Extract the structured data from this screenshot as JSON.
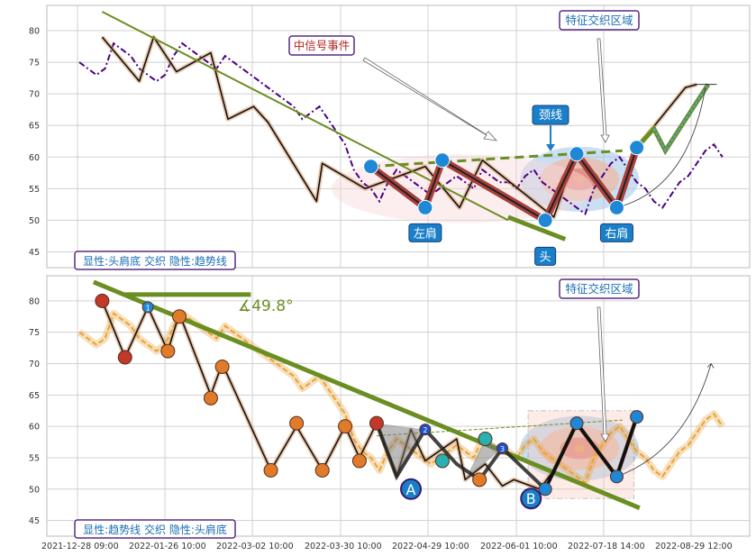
{
  "chart_data": [
    {
      "type": "line",
      "panel": "top",
      "ylim": [
        42.5,
        84
      ],
      "yticks": [
        45,
        50,
        55,
        60,
        65,
        70,
        75,
        80
      ],
      "grid": true,
      "series": [
        {
          "color": "#4b0082",
          "style": "dash-dot",
          "x": [
            0,
            3,
            6,
            9,
            12,
            15,
            18,
            21,
            24,
            27,
            30,
            33,
            36,
            39,
            42,
            45,
            48,
            51,
            54,
            57,
            60,
            63,
            66,
            69,
            72,
            75,
            78,
            81,
            84,
            87,
            90,
            93,
            96,
            99,
            102,
            105,
            108,
            111,
            114,
            117,
            120,
            123,
            126,
            129,
            132,
            135,
            138,
            141,
            144,
            147,
            150,
            153,
            156,
            159,
            162,
            165,
            168,
            171,
            174,
            177,
            180,
            183,
            186,
            189,
            192,
            195,
            198,
            201,
            204,
            207,
            210,
            213,
            216,
            219,
            222,
            225
          ],
          "values": [
            75,
            74,
            73,
            74,
            78,
            77,
            76,
            74,
            73,
            72,
            73,
            76,
            78,
            77,
            76,
            75,
            74,
            76,
            75,
            74,
            73,
            72,
            71,
            70,
            69,
            68,
            66,
            67,
            68,
            66,
            64,
            62,
            58,
            56,
            55,
            53,
            56,
            58,
            57,
            56,
            55,
            54,
            55,
            56,
            57,
            56,
            55,
            58,
            57,
            56,
            56,
            55,
            57,
            58,
            56,
            55,
            54,
            53,
            52,
            51,
            55,
            57,
            59,
            60,
            58,
            56,
            55,
            53,
            52,
            54,
            56,
            57,
            59,
            61,
            62,
            60
          ]
        }
      ],
      "zigzag_x": [
        8,
        21,
        26,
        34,
        46,
        52,
        61,
        66,
        83,
        85,
        100,
        121,
        133,
        141,
        166,
        174,
        188,
        195,
        212,
        216
      ],
      "zigzag_y": [
        79,
        72,
        79,
        73.5,
        76.5,
        66,
        68,
        65.5,
        53,
        59,
        55,
        58.5,
        52,
        59.5,
        50.5,
        61,
        52,
        61.5,
        71,
        71.5
      ],
      "trendline": {
        "x": [
          8,
          150
        ],
        "y": [
          83,
          50
        ]
      },
      "neckline": {
        "x": [
          102,
          190
        ],
        "y": [
          58.5,
          61
        ]
      },
      "pattern_points": [
        {
          "x": 102,
          "y": 58.5,
          "label": ""
        },
        {
          "x": 121,
          "y": 52,
          "label": "左肩"
        },
        {
          "x": 127,
          "y": 59.5,
          "label": ""
        },
        {
          "x": 163,
          "y": 50,
          "label": "头"
        },
        {
          "x": 174,
          "y": 60.5,
          "label": ""
        },
        {
          "x": 188,
          "y": 52,
          "label": "右肩"
        },
        {
          "x": 195,
          "y": 61.5,
          "label": ""
        }
      ],
      "annotations": [
        "中信号事件",
        "颈线",
        "特征交织区域"
      ],
      "legend": "显性:头肩底 交织 隐性:趋势线"
    },
    {
      "type": "line",
      "panel": "bottom",
      "ylim": [
        42.5,
        84
      ],
      "yticks": [
        45,
        50,
        55,
        60,
        65,
        70,
        75,
        80
      ],
      "grid": true,
      "series": [
        {
          "color": "#e8a23a",
          "style": "dash",
          "x": [
            0,
            3,
            6,
            9,
            12,
            15,
            18,
            21,
            24,
            27,
            30,
            33,
            36,
            39,
            42,
            45,
            48,
            51,
            54,
            57,
            60,
            63,
            66,
            69,
            72,
            75,
            78,
            81,
            84,
            87,
            90,
            93,
            96,
            99,
            102,
            105,
            108,
            111,
            114,
            117,
            120,
            123,
            126,
            129,
            132,
            135,
            138,
            141,
            144,
            147,
            150,
            153,
            156,
            159,
            162,
            165,
            168,
            171,
            174,
            177,
            180,
            183,
            186,
            189,
            192,
            195,
            198,
            201,
            204,
            207,
            210,
            213,
            216,
            219,
            222,
            225
          ],
          "values": [
            75,
            74,
            73,
            74,
            78,
            77,
            76,
            74,
            73,
            72,
            73,
            76,
            78,
            77,
            76,
            75,
            74,
            76,
            75,
            74,
            73,
            72,
            71,
            70,
            69,
            68,
            66,
            67,
            68,
            66,
            64,
            62,
            58,
            56,
            55,
            53,
            56,
            58,
            57,
            56,
            55,
            54,
            55,
            56,
            57,
            56,
            55,
            58,
            57,
            56,
            56,
            55,
            57,
            58,
            56,
            55,
            54,
            53,
            52,
            51,
            55,
            57,
            59,
            60,
            58,
            56,
            55,
            53,
            52,
            54,
            56,
            57,
            59,
            61,
            62,
            60
          ]
        }
      ],
      "zigzag_x": [
        8,
        16,
        24,
        31,
        35,
        46,
        50,
        67,
        76,
        85,
        93,
        98,
        104,
        111,
        116,
        121,
        132,
        135,
        142,
        148,
        152,
        161,
        166,
        174,
        188,
        195
      ],
      "zigzag_y": [
        80,
        71,
        79,
        72,
        78,
        65,
        70,
        53,
        60,
        53,
        60,
        55,
        60.5,
        52,
        59.5,
        54.5,
        58,
        51.5,
        54,
        50.5,
        51.5,
        50,
        53,
        60.5,
        52,
        61.5
      ],
      "trendline": {
        "x": [
          5,
          196
        ],
        "y": [
          83,
          47
        ]
      },
      "top_line": {
        "x": [
          16,
          60
        ],
        "y": [
          81,
          81
        ]
      },
      "angle_label": "∡49.8°",
      "pattern_points": [
        {
          "x": 8,
          "y": 80,
          "label": ""
        },
        {
          "x": 16,
          "y": 71,
          "label": ""
        },
        {
          "x": 24,
          "y": 79,
          "label": "1"
        },
        {
          "x": 31,
          "y": 72,
          "label": ""
        },
        {
          "x": 35,
          "y": 77.5,
          "label": ""
        },
        {
          "x": 46,
          "y": 64.5,
          "label": ""
        },
        {
          "x": 50,
          "y": 69.5,
          "label": ""
        },
        {
          "x": 67,
          "y": 53,
          "label": ""
        },
        {
          "x": 76,
          "y": 60.5,
          "label": ""
        },
        {
          "x": 85,
          "y": 53,
          "label": ""
        },
        {
          "x": 93,
          "y": 60,
          "label": ""
        },
        {
          "x": 98,
          "y": 54.5,
          "label": ""
        },
        {
          "x": 104,
          "y": 60.5,
          "label": ""
        },
        {
          "x": 121,
          "y": 59.5,
          "label": "2"
        },
        {
          "x": 127,
          "y": 54.5,
          "label": ""
        },
        {
          "x": 142,
          "y": 58,
          "label": ""
        },
        {
          "x": 140,
          "y": 51.5,
          "label": ""
        },
        {
          "x": 148,
          "y": 56.5,
          "label": "3"
        },
        {
          "x": 163,
          "y": 50,
          "label": ""
        },
        {
          "x": 174,
          "y": 60.5,
          "label": ""
        },
        {
          "x": 188,
          "y": 52,
          "label": ""
        },
        {
          "x": 195,
          "y": 61.5,
          "label": ""
        }
      ],
      "big_points": [
        {
          "x": 116,
          "y": 50,
          "label": "A"
        },
        {
          "x": 158,
          "y": 48.5,
          "label": "B"
        }
      ],
      "annotations": [
        "特征交织区域"
      ],
      "legend": "显性:趋势线 交织 隐性:头肩底"
    }
  ],
  "xticks": [
    "2021-12-28 09:00",
    "2022-01-26 10:00",
    "2022-03-02 10:00",
    "2022-03-30 10:00",
    "2022-04-29 10:00",
    "2022-06-01 10:00",
    "2022-07-18 14:00",
    "2022-08-29 12:00"
  ],
  "colors": {
    "accent": "#1a6fb3",
    "trend": "#6b8e23",
    "legend_border": "#5a2a82",
    "annot_text_top": "#b22222"
  }
}
